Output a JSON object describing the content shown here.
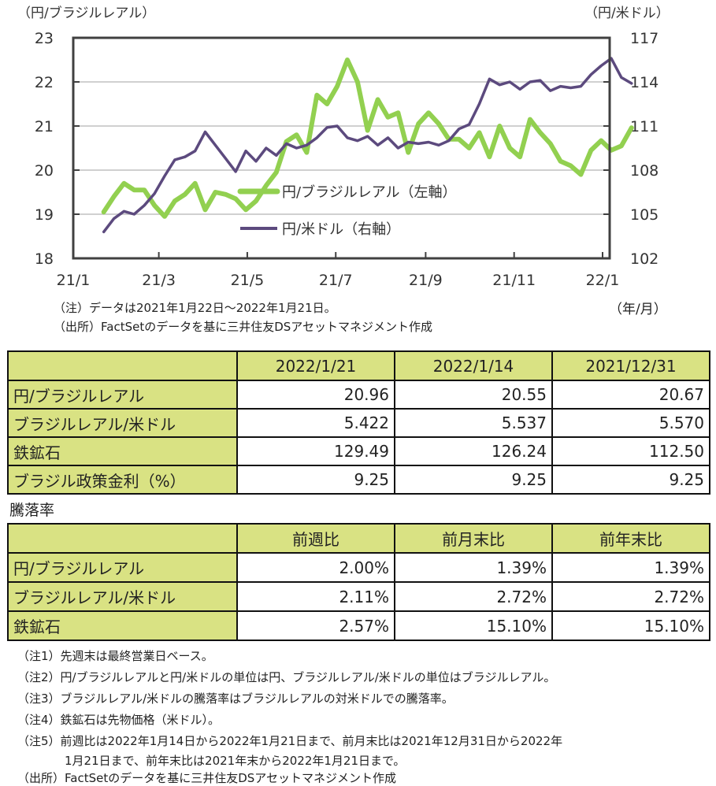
{
  "chart_data": {
    "type": "line",
    "left_axis_title": "（円/ブラジルレアル）",
    "right_axis_title": "（円/米ドル）",
    "x_unit_label": "（年/月）",
    "x_ticks": [
      "21/1",
      "21/3",
      "21/5",
      "21/7",
      "21/9",
      "21/11",
      "22/1"
    ],
    "left_ylim": [
      18,
      23
    ],
    "left_yticks": [
      "18",
      "19",
      "20",
      "21",
      "22",
      "23"
    ],
    "right_ylim": [
      102,
      117
    ],
    "right_yticks": [
      "102",
      "105",
      "108",
      "111",
      "114",
      "117"
    ],
    "grid": true,
    "legend_position": "center-left",
    "series": [
      {
        "name": "円/ブラジルレアル（左軸）",
        "axis": "left",
        "color": "#92d050",
        "x": [
          "2021-01-22",
          "2021-01-29",
          "2021-02-05",
          "2021-02-12",
          "2021-02-19",
          "2021-02-26",
          "2021-03-05",
          "2021-03-12",
          "2021-03-19",
          "2021-03-26",
          "2021-04-02",
          "2021-04-09",
          "2021-04-16",
          "2021-04-23",
          "2021-04-30",
          "2021-05-07",
          "2021-05-14",
          "2021-05-21",
          "2021-05-28",
          "2021-06-04",
          "2021-06-11",
          "2021-06-18",
          "2021-06-25",
          "2021-07-02",
          "2021-07-09",
          "2021-07-16",
          "2021-07-23",
          "2021-07-30",
          "2021-08-06",
          "2021-08-13",
          "2021-08-20",
          "2021-08-27",
          "2021-09-03",
          "2021-09-10",
          "2021-09-17",
          "2021-09-24",
          "2021-10-01",
          "2021-10-08",
          "2021-10-15",
          "2021-10-22",
          "2021-10-29",
          "2021-11-05",
          "2021-11-12",
          "2021-11-19",
          "2021-11-26",
          "2021-12-03",
          "2021-12-10",
          "2021-12-17",
          "2021-12-24",
          "2021-12-31",
          "2022-01-07",
          "2022-01-14",
          "2022-01-21"
        ],
        "values": [
          19.05,
          19.4,
          19.7,
          19.55,
          19.55,
          19.2,
          18.95,
          19.3,
          19.45,
          19.7,
          19.1,
          19.5,
          19.45,
          19.35,
          19.1,
          19.3,
          19.65,
          19.95,
          20.65,
          20.8,
          20.4,
          21.7,
          21.5,
          21.9,
          22.5,
          22.0,
          20.9,
          21.6,
          21.2,
          21.3,
          20.4,
          21.05,
          21.3,
          21.05,
          20.7,
          20.7,
          20.5,
          20.85,
          20.3,
          21.0,
          20.5,
          20.3,
          21.15,
          20.85,
          20.6,
          20.2,
          20.1,
          19.9,
          20.45,
          20.67,
          20.45,
          20.55,
          20.96
        ]
      },
      {
        "name": "円/米ドル（右軸）",
        "axis": "right",
        "color": "#5c4a7e",
        "x": [
          "2021-01-22",
          "2021-01-29",
          "2021-02-05",
          "2021-02-12",
          "2021-02-19",
          "2021-02-26",
          "2021-03-05",
          "2021-03-12",
          "2021-03-19",
          "2021-03-26",
          "2021-04-02",
          "2021-04-09",
          "2021-04-16",
          "2021-04-23",
          "2021-04-30",
          "2021-05-07",
          "2021-05-14",
          "2021-05-21",
          "2021-05-28",
          "2021-06-04",
          "2021-06-11",
          "2021-06-18",
          "2021-06-25",
          "2021-07-02",
          "2021-07-09",
          "2021-07-16",
          "2021-07-23",
          "2021-07-30",
          "2021-08-06",
          "2021-08-13",
          "2021-08-20",
          "2021-08-27",
          "2021-09-03",
          "2021-09-10",
          "2021-09-17",
          "2021-09-24",
          "2021-10-01",
          "2021-10-08",
          "2021-10-15",
          "2021-10-22",
          "2021-10-29",
          "2021-11-05",
          "2021-11-12",
          "2021-11-19",
          "2021-11-26",
          "2021-12-03",
          "2021-12-10",
          "2021-12-17",
          "2021-12-24",
          "2021-12-31",
          "2022-01-07",
          "2022-01-14",
          "2022-01-21"
        ],
        "values": [
          103.8,
          104.7,
          105.2,
          105.0,
          105.6,
          106.4,
          107.6,
          108.7,
          108.9,
          109.3,
          110.6,
          109.7,
          108.8,
          107.9,
          109.3,
          108.6,
          109.5,
          109.0,
          109.8,
          109.5,
          109.7,
          110.2,
          110.9,
          111.0,
          110.2,
          110.0,
          110.3,
          109.7,
          110.2,
          109.5,
          109.9,
          109.8,
          109.9,
          109.7,
          110.0,
          110.8,
          111.1,
          112.5,
          114.2,
          113.8,
          114.0,
          113.5,
          114.0,
          114.1,
          113.4,
          113.7,
          113.6,
          113.7,
          114.5,
          115.1,
          115.6,
          114.3,
          113.9
        ]
      }
    ]
  },
  "chart_notes": {
    "note": "（注）データは2021年1月22日～2022年1月21日。",
    "source": "（出所）FactSetのデータを基に三井住友DSアセットマネジメント作成"
  },
  "table1": {
    "headers": [
      "",
      "2022/1/21",
      "2022/1/14",
      "2021/12/31"
    ],
    "rows": [
      {
        "label": "円/ブラジルレアル",
        "values": [
          "20.96",
          "20.55",
          "20.67"
        ]
      },
      {
        "label": "ブラジルレアル/米ドル",
        "values": [
          "5.422",
          "5.537",
          "5.570"
        ]
      },
      {
        "label": "鉄鉱石",
        "values": [
          "129.49",
          "126.24",
          "112.50"
        ]
      },
      {
        "label": "ブラジル政策金利（%）",
        "values": [
          "9.25",
          "9.25",
          "9.25"
        ]
      }
    ]
  },
  "table2_title": "騰落率",
  "table2": {
    "headers": [
      "",
      "前週比",
      "前月末比",
      "前年末比"
    ],
    "rows": [
      {
        "label": "円/ブラジルレアル",
        "values": [
          "2.00%",
          "1.39%",
          "1.39%"
        ]
      },
      {
        "label": "ブラジルレアル/米ドル",
        "values": [
          "2.11%",
          "2.72%",
          "2.72%"
        ]
      },
      {
        "label": "鉄鉱石",
        "values": [
          "2.57%",
          "15.10%",
          "15.10%"
        ]
      }
    ]
  },
  "footnotes": [
    "（注1）先週末は最終営業日ベース。",
    "（注2）円/ブラジルレアルと円/米ドルの単位は円、ブラジルレアル/米ドルの単位はブラジルレアル。",
    "（注3）ブラジルレアル/米ドルの騰落率はブラジルレアルの対米ドルでの騰落率。",
    "（注4）鉄鉱石は先物価格（米ドル）。",
    "（注5）前週比は2022年1月14日から2022年1月21日まで、前月末比は2021年12月31日から2022年",
    "　　　　1月21日まで、前年末比は2021年末から2022年1月21日まで。",
    "（出所）FactSetのデータを基に三井住友DSアセットマネジメント作成"
  ]
}
